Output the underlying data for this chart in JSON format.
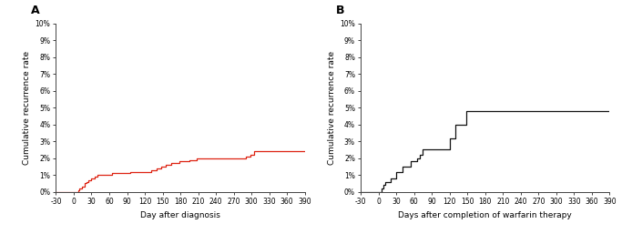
{
  "panel_A": {
    "label": "A",
    "xlabel": "Day after diagnosis",
    "ylabel": "Cumulative recurrence rate",
    "color": "#dd2211",
    "xlim": [
      -30,
      390
    ],
    "ylim": [
      0,
      0.1
    ],
    "xticks": [
      -30,
      0,
      30,
      60,
      90,
      120,
      150,
      180,
      210,
      240,
      270,
      300,
      330,
      360,
      390
    ],
    "ytick_labels": [
      "0%",
      "1%",
      "2%",
      "3%",
      "4%",
      "5%",
      "6%",
      "7%",
      "8%",
      "9%",
      "10%"
    ],
    "step_x": [
      -30,
      0,
      7,
      10,
      14,
      18,
      22,
      25,
      30,
      35,
      40,
      48,
      55,
      60,
      65,
      80,
      95,
      120,
      130,
      140,
      148,
      155,
      165,
      178,
      185,
      195,
      208,
      215,
      240,
      270,
      290,
      298,
      305,
      360,
      390
    ],
    "step_y": [
      0,
      0,
      0.001,
      0.002,
      0.003,
      0.005,
      0.006,
      0.007,
      0.008,
      0.009,
      0.01,
      0.01,
      0.01,
      0.01,
      0.011,
      0.011,
      0.012,
      0.012,
      0.013,
      0.014,
      0.015,
      0.016,
      0.017,
      0.018,
      0.018,
      0.019,
      0.02,
      0.02,
      0.02,
      0.02,
      0.021,
      0.022,
      0.024,
      0.024,
      0.024
    ]
  },
  "panel_B": {
    "label": "B",
    "xlabel": "Days after completion of warfarin therapy",
    "ylabel": "Cumulative recurrence rate",
    "color": "#111111",
    "xlim": [
      -30,
      390
    ],
    "ylim": [
      0,
      0.1
    ],
    "xticks": [
      -30,
      0,
      30,
      60,
      90,
      120,
      150,
      180,
      210,
      240,
      270,
      300,
      330,
      360,
      390
    ],
    "ytick_labels": [
      "0%",
      "1%",
      "2%",
      "3%",
      "4%",
      "5%",
      "6%",
      "7%",
      "8%",
      "9%",
      "10%"
    ],
    "step_x": [
      -30,
      0,
      5,
      8,
      12,
      20,
      30,
      40,
      55,
      65,
      70,
      75,
      85,
      95,
      120,
      130,
      140,
      148,
      160,
      170,
      360,
      390
    ],
    "step_y": [
      0,
      0,
      0.002,
      0.004,
      0.006,
      0.008,
      0.012,
      0.015,
      0.018,
      0.02,
      0.022,
      0.025,
      0.025,
      0.025,
      0.032,
      0.04,
      0.04,
      0.048,
      0.048,
      0.048,
      0.048,
      0.048
    ]
  },
  "fig_width": 6.83,
  "fig_height": 2.57,
  "dpi": 100
}
